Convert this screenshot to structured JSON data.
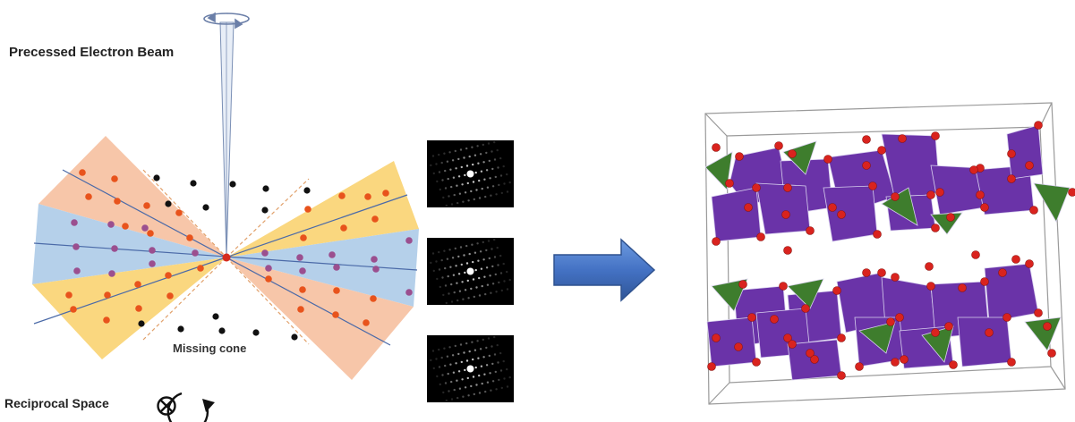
{
  "labels": {
    "beam": "Precessed Electron Beam",
    "missing_cone": "Missing cone",
    "reciprocal_space": "Reciprocal Space"
  },
  "icons": {
    "rotation": "rotation-arrow-icon",
    "into_page": "circled-x-rotation-icon",
    "process_arrow": "right-arrow-icon"
  },
  "colors": {
    "wedge_orange": "#f7c6a9",
    "wedge_blue": "#b5d0ea",
    "wedge_yellow": "#fad77f",
    "dot_red": "#e8531c",
    "dot_purple": "#9b4f8f",
    "arrow_blue": "#4472c4",
    "octahedron_purple": "#6a33a8",
    "tetrahedron_green": "#3e7d2d",
    "oxygen_red": "#d9231e"
  },
  "diffraction_patterns": [
    "pattern-1",
    "pattern-2",
    "pattern-3"
  ]
}
